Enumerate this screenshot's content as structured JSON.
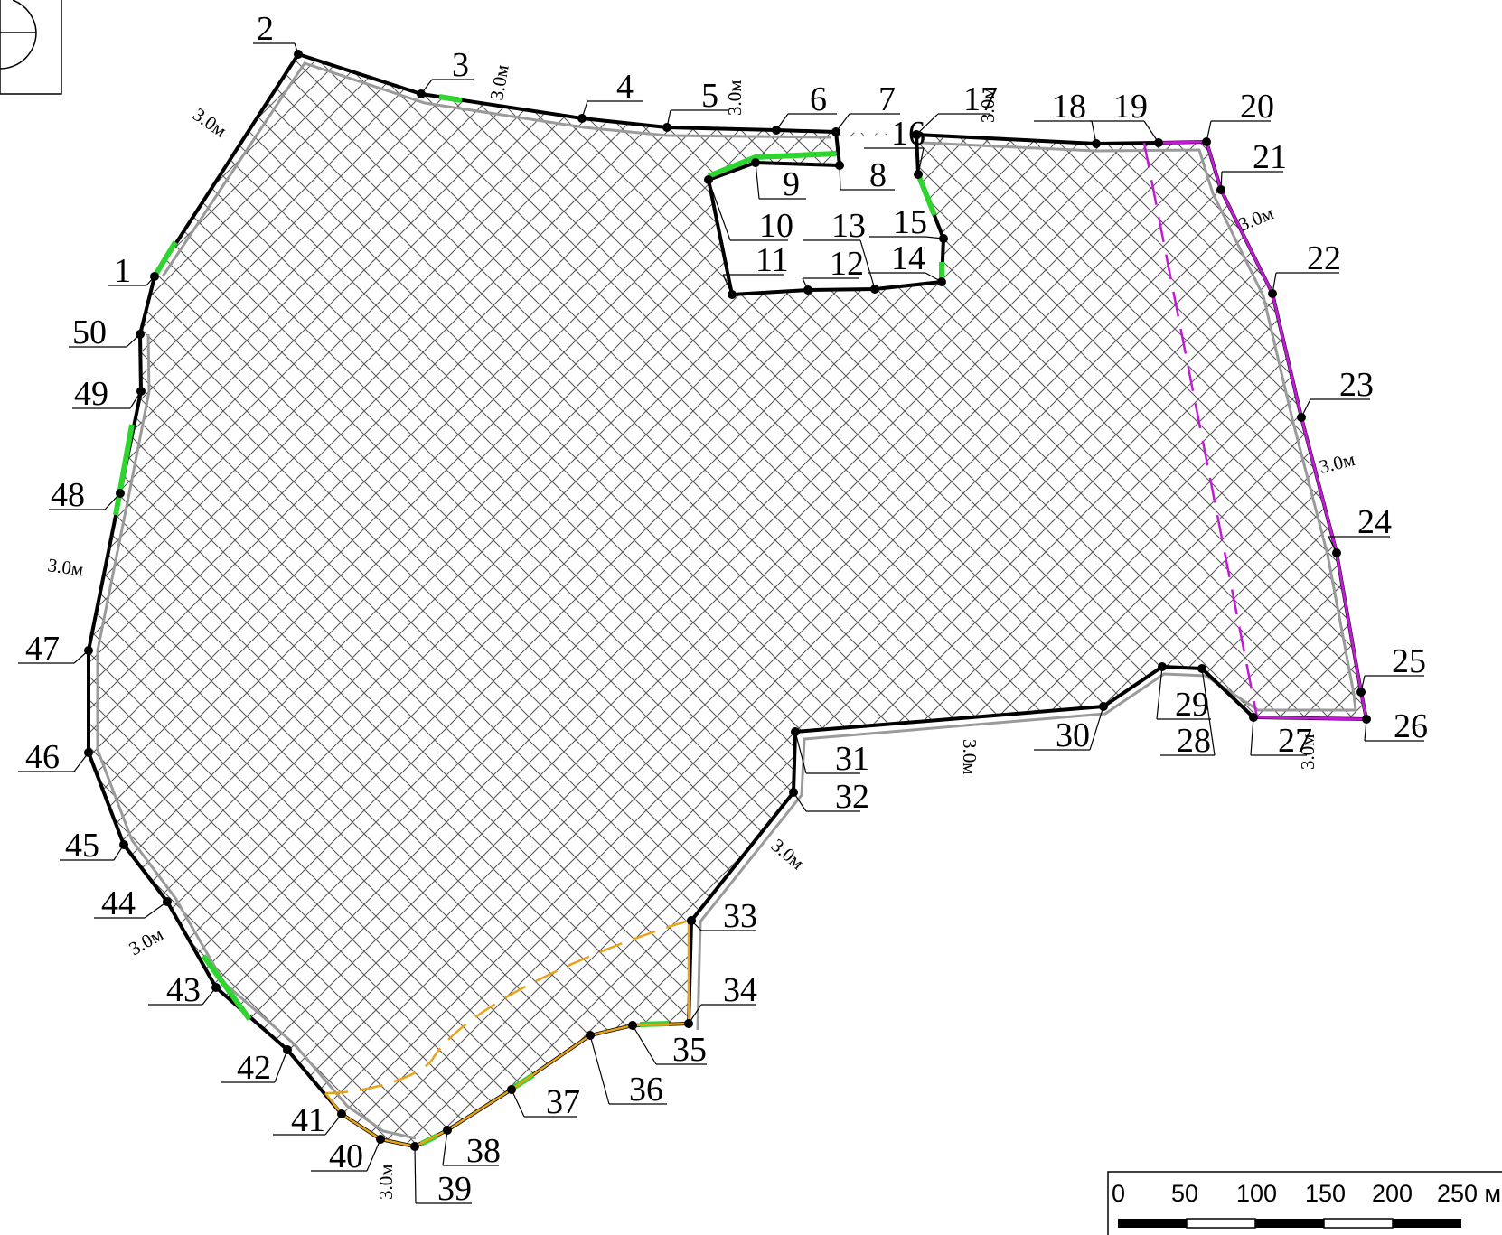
{
  "map": {
    "point_labels": [
      "1",
      "2",
      "3",
      "4",
      "5",
      "6",
      "7",
      "8",
      "9",
      "10",
      "11",
      "12",
      "13",
      "14",
      "15",
      "16",
      "17",
      "18",
      "19",
      "20",
      "21",
      "22",
      "23",
      "24",
      "25",
      "26",
      "27",
      "28",
      "29",
      "30",
      "31",
      "32",
      "33",
      "34",
      "35",
      "36",
      "37",
      "38",
      "39",
      "40",
      "41",
      "42",
      "43",
      "44",
      "45",
      "46",
      "47",
      "48",
      "49",
      "50"
    ],
    "offset_label": "3.0м",
    "hatch_color": "#5a5a5a",
    "boundary_color": "#000000",
    "segment_colors": {
      "green": "#2fd52f",
      "magenta": "#c21ad6",
      "orange": "#e8a317",
      "gray": "#9a9a9a"
    }
  },
  "scale_bar": {
    "ticks": [
      "0",
      "50",
      "100",
      "150",
      "200",
      "250 м"
    ]
  },
  "icons": {
    "north_arrow": "compass-circle-icon"
  }
}
